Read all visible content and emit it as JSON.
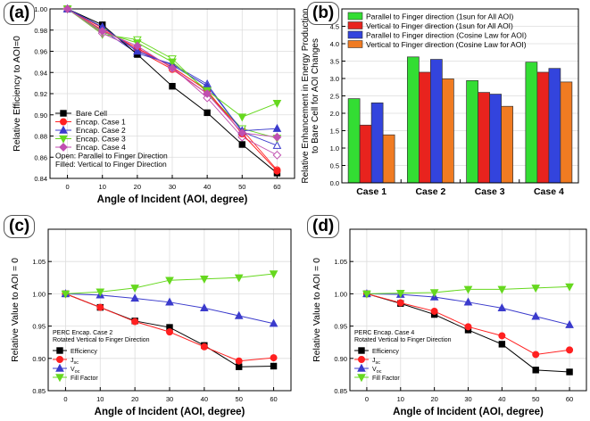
{
  "chart_data": [
    {
      "id": "a",
      "type": "line",
      "panel_label": "(a)",
      "xlabel": "Angle of Incident (AOI, degree)",
      "ylabel": "Relative Efficiency to AOI=0",
      "x": [
        0,
        10,
        20,
        30,
        40,
        50,
        60
      ],
      "xticks": [
        "0",
        "10",
        "20",
        "30",
        "40",
        "50",
        "60"
      ],
      "ylim": [
        0.84,
        1.0
      ],
      "yticks": [
        "0.84",
        "0.86",
        "0.88",
        "0.90",
        "0.92",
        "0.94",
        "0.96",
        "0.98",
        "1.00"
      ],
      "series": [
        {
          "name": "Bare Cell",
          "color": "#000000",
          "marker": "square",
          "values": [
            1.0,
            0.985,
            0.957,
            0.927,
            0.902,
            0.872,
            0.845
          ]
        },
        {
          "name": "Encap. Case 1",
          "color": "#ff2020",
          "marker": "circle",
          "values": [
            1.0,
            0.98,
            0.963,
            0.945,
            0.923,
            0.882,
            0.847
          ]
        },
        {
          "name": "Encap. Case 2",
          "color": "#3b3bcc",
          "marker": "triangle",
          "values": [
            1.0,
            0.983,
            0.96,
            0.947,
            0.927,
            0.885,
            0.887
          ]
        },
        {
          "name": "Encap. Case 3",
          "color": "#66d81f",
          "marker": "triangle-down",
          "values": [
            1.0,
            0.978,
            0.968,
            0.95,
            0.923,
            0.898,
            0.911
          ]
        },
        {
          "name": "Encap. Case 4",
          "color": "#c04fb0",
          "marker": "diamond",
          "values": [
            1.0,
            0.979,
            0.965,
            0.944,
            0.92,
            0.883,
            0.879
          ]
        }
      ],
      "open_series": [
        {
          "name": "Encap. Case 1",
          "values": [
            1.0,
            0.982,
            0.961,
            0.943,
            0.92,
            0.886,
            0.848
          ]
        },
        {
          "name": "Encap. Case 2",
          "values": [
            1.0,
            0.98,
            0.958,
            0.948,
            0.929,
            0.884,
            0.871
          ]
        },
        {
          "name": "Encap. Case 3",
          "values": [
            1.0,
            0.976,
            0.971,
            0.953,
            0.921,
            0.887,
            0.878
          ]
        },
        {
          "name": "Encap. Case 4",
          "values": [
            1.0,
            0.977,
            0.962,
            0.945,
            0.916,
            0.879,
            0.862
          ]
        }
      ],
      "notes": [
        "Open: Parallel to Finger Direction",
        "Filled: Vertical to Finger Direction"
      ]
    },
    {
      "id": "b",
      "type": "bar",
      "panel_label": "(b)",
      "categories": [
        "Case 1",
        "Case 2",
        "Case 3",
        "Case 4"
      ],
      "ylabel": "Relative Enhancement in Energy Production to Bare Cell for AOI Changes",
      "ylim": [
        0,
        5
      ],
      "yticks": [
        "0.0",
        "0.5",
        "1.0",
        "1.5",
        "2.0",
        "2.5",
        "3.0",
        "3.5",
        "4.0",
        "4.5",
        "5.0"
      ],
      "series": [
        {
          "name": "Parallel to Finger direction (1sun for All AOI)",
          "color": "#33dd33",
          "values": [
            2.42,
            3.62,
            2.94,
            3.47
          ]
        },
        {
          "name": "Vertical to Finger direction (1sun for All AOI)",
          "color": "#e8231e",
          "values": [
            1.66,
            3.18,
            2.6,
            3.18
          ]
        },
        {
          "name": "Parallel to Finger direction (Cosine Law for AOI)",
          "color": "#3344dd",
          "values": [
            2.3,
            3.55,
            2.55,
            3.29
          ]
        },
        {
          "name": "Vertical to Finger direction (Cosine Law for AOI)",
          "color": "#f07b22",
          "values": [
            1.38,
            2.99,
            2.2,
            2.9
          ]
        }
      ]
    },
    {
      "id": "c",
      "type": "line",
      "panel_label": "(c)",
      "xlabel": "Angle of Incident (AOI, degree)",
      "ylabel": "Relative Value to AOI = 0",
      "x": [
        0,
        10,
        20,
        30,
        40,
        50,
        60
      ],
      "xticks": [
        "0",
        "10",
        "20",
        "30",
        "40",
        "50",
        "60"
      ],
      "ylim": [
        0.85,
        1.1
      ],
      "yticks": [
        "0.85",
        "0.90",
        "0.95",
        "1.00",
        "1.05"
      ],
      "notes": [
        "PERC Encap. Case 2",
        "Rotated Vertical to Finger Direction"
      ],
      "series": [
        {
          "name": "Efficiency",
          "name_base": "Efficiency",
          "name_sub": "",
          "color": "#000000",
          "marker": "square",
          "values": [
            1.0,
            0.979,
            0.958,
            0.948,
            0.92,
            0.887,
            0.888
          ]
        },
        {
          "name": "Jsc",
          "name_base": "J",
          "name_sub": "sc",
          "color": "#ff2020",
          "marker": "circle",
          "values": [
            1.0,
            0.979,
            0.957,
            0.941,
            0.918,
            0.896,
            0.901
          ]
        },
        {
          "name": "Voc",
          "name_base": "V",
          "name_sub": "oc",
          "color": "#3b3bcc",
          "marker": "triangle",
          "values": [
            1.0,
            0.998,
            0.993,
            0.987,
            0.978,
            0.966,
            0.954
          ]
        },
        {
          "name": "Fill Factor",
          "name_base": "Fill Factor",
          "name_sub": "",
          "color": "#66d81f",
          "marker": "triangle-down",
          "values": [
            1.0,
            1.003,
            1.009,
            1.021,
            1.023,
            1.025,
            1.031
          ]
        }
      ]
    },
    {
      "id": "d",
      "type": "line",
      "panel_label": "(d)",
      "xlabel": "Angle of Incident (AOI, degree)",
      "ylabel": "Relative Value to AOI = 0",
      "x": [
        0,
        10,
        20,
        30,
        40,
        50,
        60
      ],
      "xticks": [
        "0",
        "10",
        "20",
        "30",
        "40",
        "50",
        "60"
      ],
      "ylim": [
        0.85,
        1.1
      ],
      "yticks": [
        "0.85",
        "0.90",
        "0.95",
        "1.00",
        "1.05"
      ],
      "notes": [
        "PERC Encap. Case 4",
        "Rotated Vertical to Finger Direction"
      ],
      "series": [
        {
          "name": "Efficiency",
          "name_base": "Efficiency",
          "name_sub": "",
          "color": "#000000",
          "marker": "square",
          "values": [
            1.0,
            0.985,
            0.968,
            0.944,
            0.922,
            0.882,
            0.879
          ]
        },
        {
          "name": "Jsc",
          "name_base": "J",
          "name_sub": "sc",
          "color": "#ff2020",
          "marker": "circle",
          "values": [
            1.0,
            0.986,
            0.973,
            0.949,
            0.935,
            0.906,
            0.913
          ]
        },
        {
          "name": "Voc",
          "name_base": "V",
          "name_sub": "oc",
          "color": "#3b3bcc",
          "marker": "triangle",
          "values": [
            1.0,
            0.999,
            0.995,
            0.987,
            0.978,
            0.965,
            0.952
          ]
        },
        {
          "name": "Fill Factor",
          "name_base": "Fill Factor",
          "name_sub": "",
          "color": "#66d81f",
          "marker": "triangle-down",
          "values": [
            1.0,
            1.001,
            1.002,
            1.007,
            1.007,
            1.009,
            1.011
          ]
        }
      ]
    }
  ]
}
